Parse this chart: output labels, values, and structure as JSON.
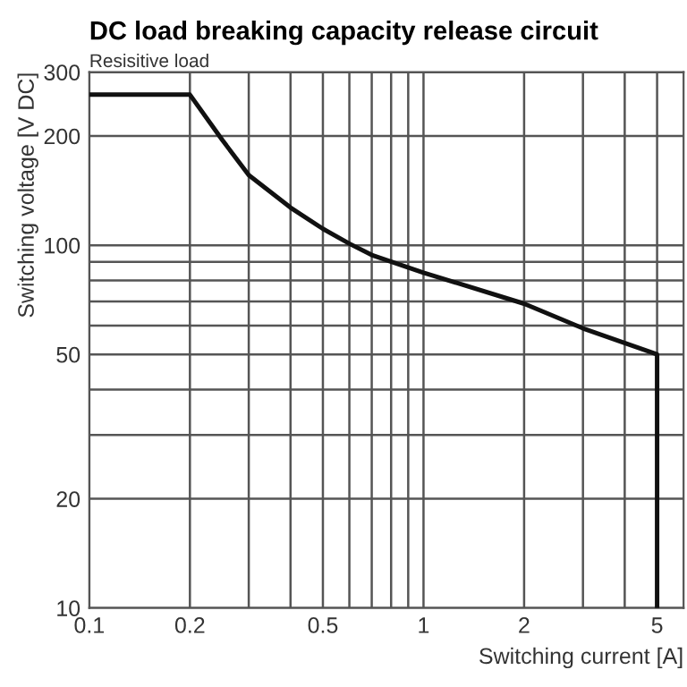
{
  "chart_data": {
    "type": "line",
    "title": "DC load breaking capacity release circuit",
    "subtitle": "Resisitive load",
    "xlabel": "Switching current [A]",
    "ylabel": "Switching voltage [V DC]",
    "log": "xy",
    "grid": true,
    "marker": "none",
    "line_style": "solid",
    "xlim": [
      0.1,
      6
    ],
    "ylim": [
      10,
      300
    ],
    "xticks": [
      0.1,
      0.2,
      {
        "value": 0.3,
        "label": null
      },
      {
        "value": 0.4,
        "label": null
      },
      0.5,
      {
        "value": 0.6,
        "label": null
      },
      {
        "value": 0.7,
        "label": null
      },
      {
        "value": 0.8,
        "label": null
      },
      {
        "value": 0.9,
        "label": null
      },
      1,
      2,
      {
        "value": 3,
        "label": null
      },
      {
        "value": 4,
        "label": null
      },
      5
    ],
    "yticks": [
      10,
      20,
      {
        "value": 30,
        "label": null
      },
      {
        "value": 40,
        "label": null
      },
      50,
      {
        "value": 60,
        "label": null
      },
      {
        "value": 70,
        "label": null
      },
      {
        "value": 80,
        "label": null
      },
      {
        "value": 90,
        "label": null
      },
      100,
      200,
      300
    ],
    "series": [
      {
        "color": "#111111",
        "x": [
          0.1,
          0.2,
          0.25,
          0.3,
          0.4,
          0.5,
          0.6,
          0.7,
          1,
          2,
          3,
          5,
          5
        ],
        "values": [
          260,
          260,
          195,
          156,
          127,
          111,
          101,
          94,
          84,
          69,
          59,
          50,
          10
        ]
      }
    ]
  }
}
